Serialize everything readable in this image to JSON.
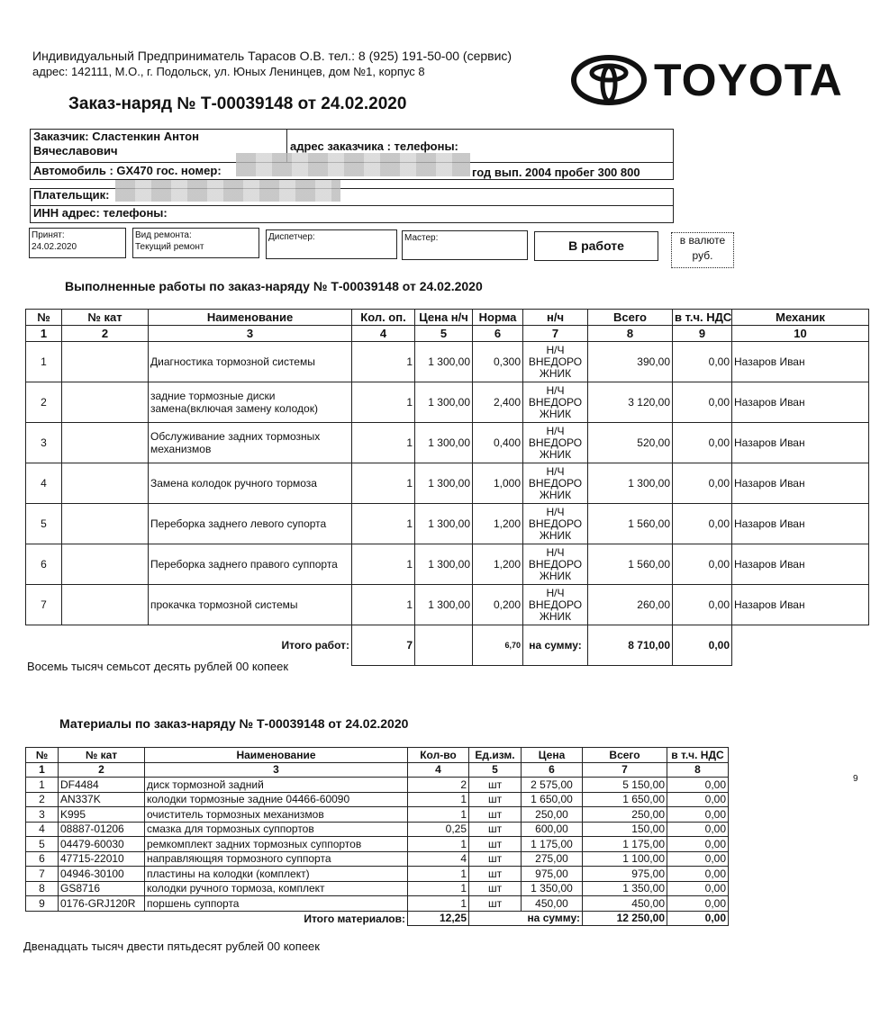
{
  "header": {
    "company": "Индивидуальный Предприниматель Тарасов О.В. тел.: 8 (925) 191-50-00 (сервис)",
    "address": "адрес: 142111, М.О., г. Подольск, ул. Юных Ленинцев, дом №1, корпус 8",
    "brand": "TOYOTA",
    "title": "Заказ-наряд № Т-00039148 от 24.02.2020"
  },
  "customer": {
    "name": "Заказчик: Сластенкин Антон Вячеславович",
    "address_label": "адрес заказчика :   телефоны:",
    "car": "Автомобиль : GX470  гос. номер:",
    "year": "год вып. 2004 пробег 300 800",
    "payer": "Плательщик:",
    "inn": "ИНН   адрес:   телефоны:"
  },
  "info": {
    "accepted_label": "Принят:",
    "accepted": "24.02.2020",
    "repair_label": "Вид ремонта:",
    "repair": "Текущий ремонт",
    "dispatcher": "Диспетчер:",
    "master": "Мастер:",
    "status": "В работе",
    "currency_label": "в валюте",
    "currency": "руб."
  },
  "works": {
    "title": "Выполненные работы по заказ-наряду №  Т-00039148 от 24.02.2020",
    "headers": [
      "№",
      "№ кат",
      "Наименование",
      "Кол. оп.",
      "Цена н/ч",
      "Норма",
      "н/ч",
      "Всего",
      "в т.ч. НДС",
      "Механик"
    ],
    "nums": [
      "1",
      "2",
      "3",
      "4",
      "5",
      "6",
      "7",
      "8",
      "9",
      "10"
    ],
    "rows": [
      [
        "1",
        "",
        "Диагностика тормозной системы",
        "1",
        "1 300,00",
        "0,300",
        "Н/Ч ВНЕДОРО ЖНИК",
        "390,00",
        "0,00",
        "Назаров Иван"
      ],
      [
        "2",
        "",
        "задние тормозные диски замена(включая замену колодок)",
        "1",
        "1 300,00",
        "2,400",
        "Н/Ч ВНЕДОРО ЖНИК",
        "3 120,00",
        "0,00",
        "Назаров Иван"
      ],
      [
        "3",
        "",
        "Обслуживание задних тормозных механизмов",
        "1",
        "1 300,00",
        "0,400",
        "Н/Ч ВНЕДОРО ЖНИК",
        "520,00",
        "0,00",
        "Назаров Иван"
      ],
      [
        "4",
        "",
        "Замена колодок ручного тормоза",
        "1",
        "1 300,00",
        "1,000",
        "Н/Ч ВНЕДОРО ЖНИК",
        "1 300,00",
        "0,00",
        "Назаров Иван"
      ],
      [
        "5",
        "",
        "Переборка заднего левого супорта",
        "1",
        "1 300,00",
        "1,200",
        "Н/Ч ВНЕДОРО ЖНИК",
        "1 560,00",
        "0,00",
        "Назаров Иван"
      ],
      [
        "6",
        "",
        "Переборка заднего правого суппорта",
        "1",
        "1 300,00",
        "1,200",
        "Н/Ч ВНЕДОРО ЖНИК",
        "1 560,00",
        "0,00",
        "Назаров Иван"
      ],
      [
        "7",
        "",
        "прокачка тормозной системы",
        "1",
        "1 300,00",
        "0,200",
        "Н/Ч ВНЕДОРО ЖНИК",
        "260,00",
        "0,00",
        "Назаров Иван"
      ]
    ],
    "total_label": "Итого работ:",
    "total_qty": "7",
    "total_norm": "6,70",
    "sum_label": "на сумму:",
    "total": "8 710,00",
    "total_vat": "0,00",
    "words": "Восемь тысяч семьсот десять рублей 00 копеек"
  },
  "materials": {
    "title": "Материалы по заказ-наряду №  Т-00039148 от 24.02.2020",
    "headers": [
      "№",
      "№ кат",
      "Наименование",
      "Кол-во",
      "Ед.изм.",
      "Цена",
      "Всего",
      "в т.ч. НДС"
    ],
    "nums": [
      "1",
      "2",
      "3",
      "4",
      "5",
      "6",
      "7",
      "8"
    ],
    "rows": [
      [
        "1",
        "DF4484",
        "диск тормозной задний",
        "2",
        "шт",
        "2 575,00",
        "5 150,00",
        "0,00"
      ],
      [
        "2",
        "AN337K",
        "колодки тормозные задние 04466-60090",
        "1",
        "шт",
        "1 650,00",
        "1 650,00",
        "0,00"
      ],
      [
        "3",
        "K995",
        "очиститель тормозных механизмов",
        "1",
        "шт",
        "250,00",
        "250,00",
        "0,00"
      ],
      [
        "4",
        "08887-01206",
        "смазка для тормозных суппортов",
        "0,25",
        "шт",
        "600,00",
        "150,00",
        "0,00"
      ],
      [
        "5",
        "04479-60030",
        "ремкомплект задних тормозных суппортов",
        "1",
        "шт",
        "1 175,00",
        "1 175,00",
        "0,00"
      ],
      [
        "6",
        "47715-22010",
        "направляющяя тормозного суппорта",
        "4",
        "шт",
        "275,00",
        "1 100,00",
        "0,00"
      ],
      [
        "7",
        "04946-30100",
        "пластины на колодки (комплект)",
        "1",
        "шт",
        "975,00",
        "975,00",
        "0,00"
      ],
      [
        "8",
        "GS8716",
        "колодки ручного тормоза, комплект",
        "1",
        "шт",
        "1 350,00",
        "1 350,00",
        "0,00"
      ],
      [
        "9",
        "0176-GRJ120R",
        "поршень суппорта",
        "1",
        "шт",
        "450,00",
        "450,00",
        "0,00"
      ]
    ],
    "total_label": "Итого материалов:",
    "total_qty": "12,25",
    "sum_label": "на сумму:",
    "total": "12 250,00",
    "total_vat": "0,00",
    "words": "Двенадцать тысяч двести пятьдесят рублей 00 копеек"
  },
  "page_number": "9"
}
